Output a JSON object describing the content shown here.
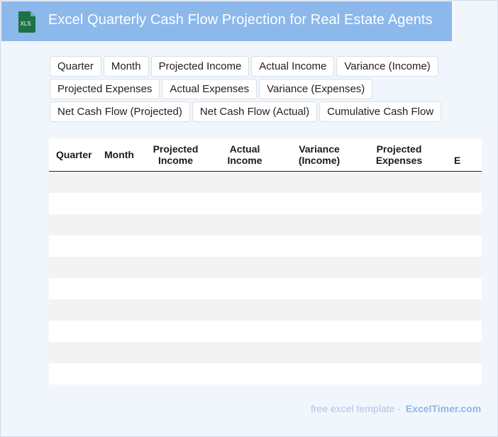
{
  "header": {
    "title": "Excel Quarterly Cash Flow Projection for Real Estate Agents",
    "icon_label": "XLS",
    "icon_color": "#1e7145",
    "background": "#8cb8ec"
  },
  "chips": [
    [
      "Quarter",
      "Month",
      "Projected Income",
      "Actual Income",
      "Variance (Income)"
    ],
    [
      "Projected Expenses",
      "Actual Expenses",
      "Variance (Expenses)"
    ],
    [
      "Net Cash Flow (Projected)",
      "Net Cash Flow (Actual)",
      "Cumulative Cash Flow"
    ]
  ],
  "table": {
    "headers": [
      {
        "l1": "Quarter",
        "l2": ""
      },
      {
        "l1": "Month",
        "l2": ""
      },
      {
        "l1": "Projected",
        "l2": "Income"
      },
      {
        "l1": "Actual",
        "l2": "Income"
      },
      {
        "l1": "Variance",
        "l2": "(Income)"
      },
      {
        "l1": "Projected",
        "l2": "Expenses"
      },
      {
        "l1": "",
        "l2": "E"
      }
    ],
    "empty_row_count": 10
  },
  "footer": {
    "text": "free excel template -",
    "brand": "ExcelTimer.com"
  }
}
